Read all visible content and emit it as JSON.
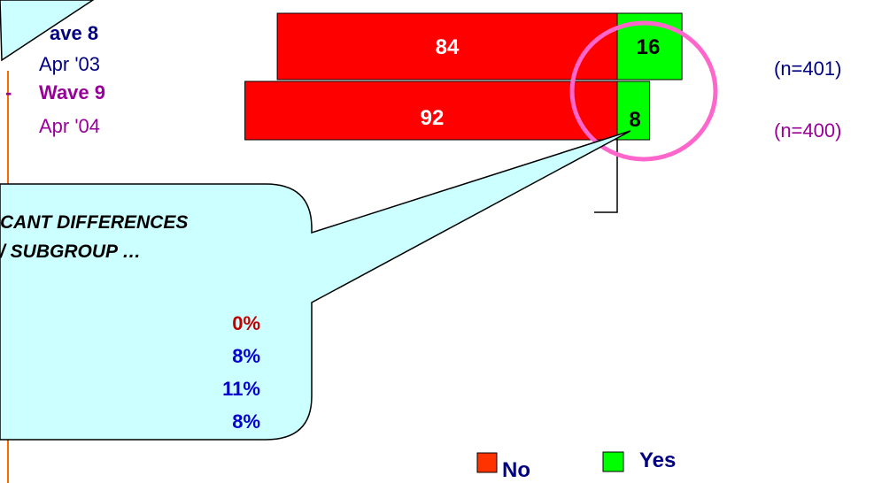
{
  "chart_data": {
    "type": "bar",
    "orientation": "horizontal-stacked",
    "categories": [
      {
        "wave": "Wave 8",
        "date": "Apr '03",
        "n": "(n=401)"
      },
      {
        "wave": "Wave 9",
        "date": "Apr '04",
        "n": "(n=400)"
      }
    ],
    "series": [
      {
        "name": "No",
        "values": [
          84,
          92
        ],
        "color": "#ff0000"
      },
      {
        "name": "Yes",
        "values": [
          16,
          8
        ],
        "color": "#00ff00"
      }
    ],
    "legend_placement": "bottom"
  },
  "rows": [
    {
      "wave": "Wave 8",
      "wave_visible": "ave 8",
      "date": "Apr '03",
      "n": "(n=401)",
      "no": "84",
      "yes": "16"
    },
    {
      "dash": "-",
      "wave": "Wave 9",
      "date": "Apr '04",
      "n": "(n=400)",
      "no": "92",
      "yes": "8"
    }
  ],
  "callout": {
    "line1": "CANT DIFFERENCES",
    "line2": "/ SUBGROUP …",
    "values": [
      {
        "text": "0%",
        "color": "#c00000"
      },
      {
        "text": "8%",
        "color": "#0000cc"
      },
      {
        "text": "11%",
        "color": "#0000cc"
      },
      {
        "text": "8%",
        "color": "#0000cc"
      }
    ]
  },
  "legend": {
    "no": "No",
    "yes": "Yes"
  },
  "colors": {
    "bubble_fill": "#ccffff",
    "circle": "#ff66cc",
    "no": "#ff0000",
    "yes": "#00ff00",
    "legend_no": "#ff3300"
  }
}
